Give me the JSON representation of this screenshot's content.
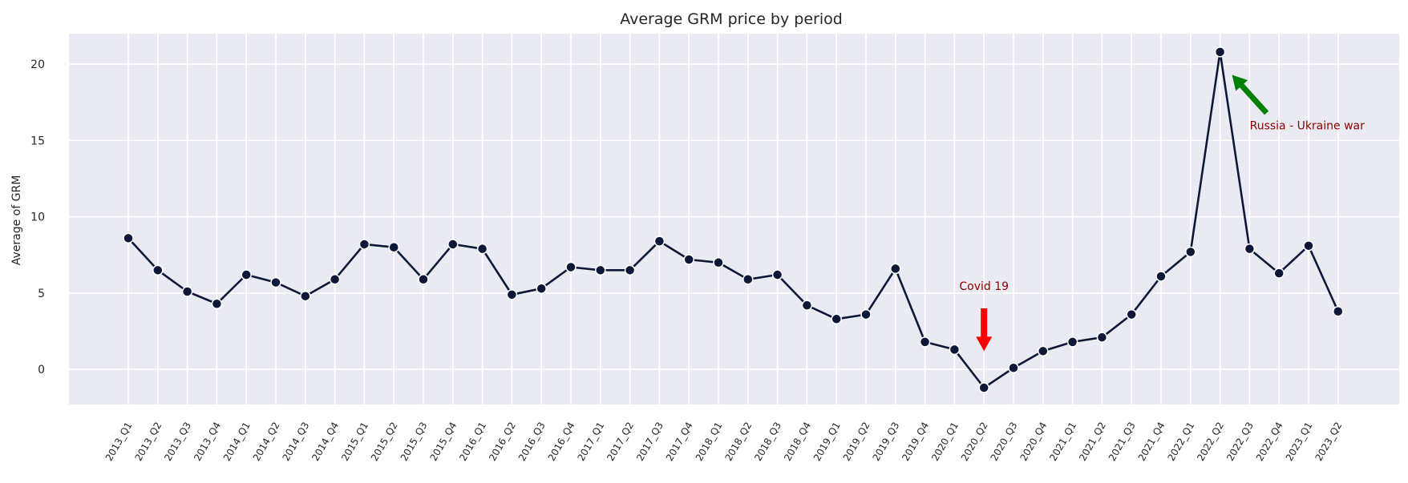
{
  "chart_data": {
    "type": "line",
    "title": "Average GRM price by period",
    "xlabel": "",
    "ylabel": "Average of GRM",
    "ylim": [
      -2.3,
      22
    ],
    "yticks": [
      0,
      5,
      10,
      15,
      20
    ],
    "grid": true,
    "categories": [
      "2013_Q1",
      "2013_Q2",
      "2013_Q3",
      "2013_Q4",
      "2014_Q1",
      "2014_Q2",
      "2014_Q3",
      "2014_Q4",
      "2015_Q1",
      "2015_Q2",
      "2015_Q3",
      "2015_Q4",
      "2016_Q1",
      "2016_Q2",
      "2016_Q3",
      "2016_Q4",
      "2017_Q1",
      "2017_Q2",
      "2017_Q3",
      "2017_Q4",
      "2018_Q1",
      "2018_Q2",
      "2018_Q3",
      "2018_Q4",
      "2019_Q1",
      "2019_Q2",
      "2019_Q3",
      "2019_Q4",
      "2020_Q1",
      "2020_Q2",
      "2020_Q3",
      "2020_Q4",
      "2021_Q1",
      "2021_Q2",
      "2021_Q3",
      "2021_Q4",
      "2022_Q1",
      "2022_Q2",
      "2022_Q3",
      "2022_Q4",
      "2023_Q1",
      "2023_Q2"
    ],
    "values": [
      8.6,
      6.5,
      5.1,
      4.3,
      6.2,
      5.7,
      4.8,
      5.9,
      8.2,
      8.0,
      5.9,
      8.2,
      7.9,
      4.9,
      5.3,
      6.7,
      6.5,
      6.5,
      8.4,
      7.2,
      7.0,
      5.9,
      6.2,
      4.2,
      3.3,
      3.6,
      6.6,
      1.8,
      1.3,
      -1.2,
      0.1,
      1.2,
      1.8,
      2.1,
      3.6,
      6.1,
      7.7,
      20.8,
      7.9,
      6.3,
      8.1,
      3.8
    ],
    "colors": {
      "line": "#0d1838",
      "background": "#eaeaf2",
      "grid": "#ffffff",
      "annotation_text": "#8b0000",
      "covid_arrow": "#ff0000",
      "war_arrow": "#008000"
    },
    "annotations": [
      {
        "text": "Covid 19",
        "category": "2020_Q2",
        "y": 1.2
      },
      {
        "text": "Russia - Ukraine war",
        "category": "2022_Q2",
        "y": 20.8
      }
    ]
  }
}
